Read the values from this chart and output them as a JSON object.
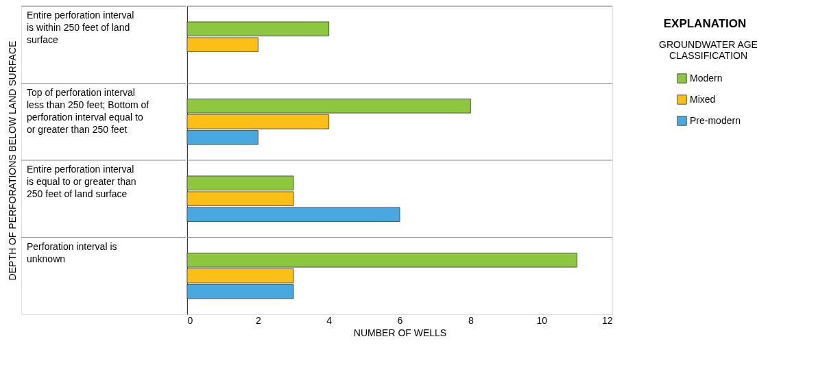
{
  "chart_data": {
    "type": "bar",
    "orientation": "horizontal",
    "categories": [
      "Entire perforation interval is within 250 feet of land surface",
      "Top of perforation interval less than 250 feet; Bottom of perforation interval equal to or greater than 250 feet",
      "Entire perforation interval is equal to or greater than 250 feet of land surface",
      "Perforation interval is unknown"
    ],
    "series": [
      {
        "name": "Modern",
        "color": "#8dc63f",
        "values": [
          4,
          8,
          3,
          11
        ]
      },
      {
        "name": "Mixed",
        "color": "#fbbf16",
        "values": [
          2,
          4,
          3,
          3
        ]
      },
      {
        "name": "Pre-modern",
        "color": "#4aa8e0",
        "values": [
          null,
          2,
          6,
          3
        ]
      }
    ],
    "xlim": [
      0,
      12
    ],
    "xticks": [
      0,
      2,
      4,
      6,
      8,
      10,
      12
    ],
    "xlabel": "NUMBER OF WELLS",
    "ylabel": "DEPTH OF PERFORATIONS BELOW LAND SURFACE",
    "legend": "right",
    "legend_title": "GROUNDWATER AGE CLASSIFICATION",
    "annotations": [
      "EXPLANATION"
    ]
  }
}
